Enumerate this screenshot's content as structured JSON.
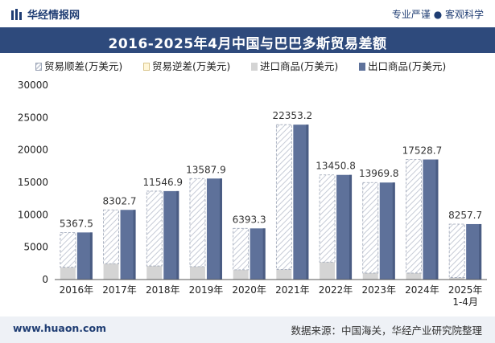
{
  "header": {
    "logo_text": "华经情报网",
    "slogan": "专业严谨 ● 客观科学",
    "title": "2016-2025年4月中国与巴巴多斯贸易差额"
  },
  "footer": {
    "site": "www.huaon.com",
    "source": "数据来源：中国海关，华经产业研究院整理"
  },
  "colors": {
    "import": "#d4d4d4",
    "export": "#5e719a",
    "surplus_hatch": "#c6cbd6",
    "title_bg": "#2e4a7c"
  },
  "chart_data": {
    "type": "bar",
    "categories": [
      "2016年",
      "2017年",
      "2018年",
      "2019年",
      "2020年",
      "2021年",
      "2022年",
      "2023年",
      "2024年",
      "2025年\n1-4月"
    ],
    "legend": [
      "贸易顺差(万美元)",
      "贸易逆差(万美元)",
      "进口商品(万美元)",
      "出口商品(万美元)"
    ],
    "series": [
      {
        "name": "贸易顺差(万美元)",
        "values": [
          5367.5,
          8302.7,
          11546.9,
          13587.9,
          6393.3,
          22353.2,
          13450.8,
          13969.8,
          17528.7,
          8257.7
        ]
      },
      {
        "name": "贸易逆差(万美元)",
        "values": [
          0,
          0,
          0,
          0,
          0,
          0,
          0,
          0,
          0,
          0
        ]
      },
      {
        "name": "进口商品(万美元)",
        "values": [
          1900,
          2450,
          2100,
          2000,
          1500,
          1550,
          2700,
          1000,
          1000,
          300
        ]
      },
      {
        "name": "出口商品(万美元)",
        "values": [
          7267.5,
          10752.7,
          13646.9,
          15587.9,
          7893.3,
          23903.2,
          16150.8,
          14969.8,
          18528.7,
          8557.7
        ]
      }
    ],
    "data_labels": [
      "5367.5",
      "8302.7",
      "11546.9",
      "13587.9",
      "6393.3",
      "22353.2",
      "13450.8",
      "13969.8",
      "17528.7",
      "8257.7"
    ],
    "y_ticks": [
      "0",
      "5000",
      "10000",
      "15000",
      "20000",
      "25000",
      "30000"
    ],
    "ylim": [
      0,
      30000
    ],
    "grid": false,
    "legend_position": "top"
  }
}
